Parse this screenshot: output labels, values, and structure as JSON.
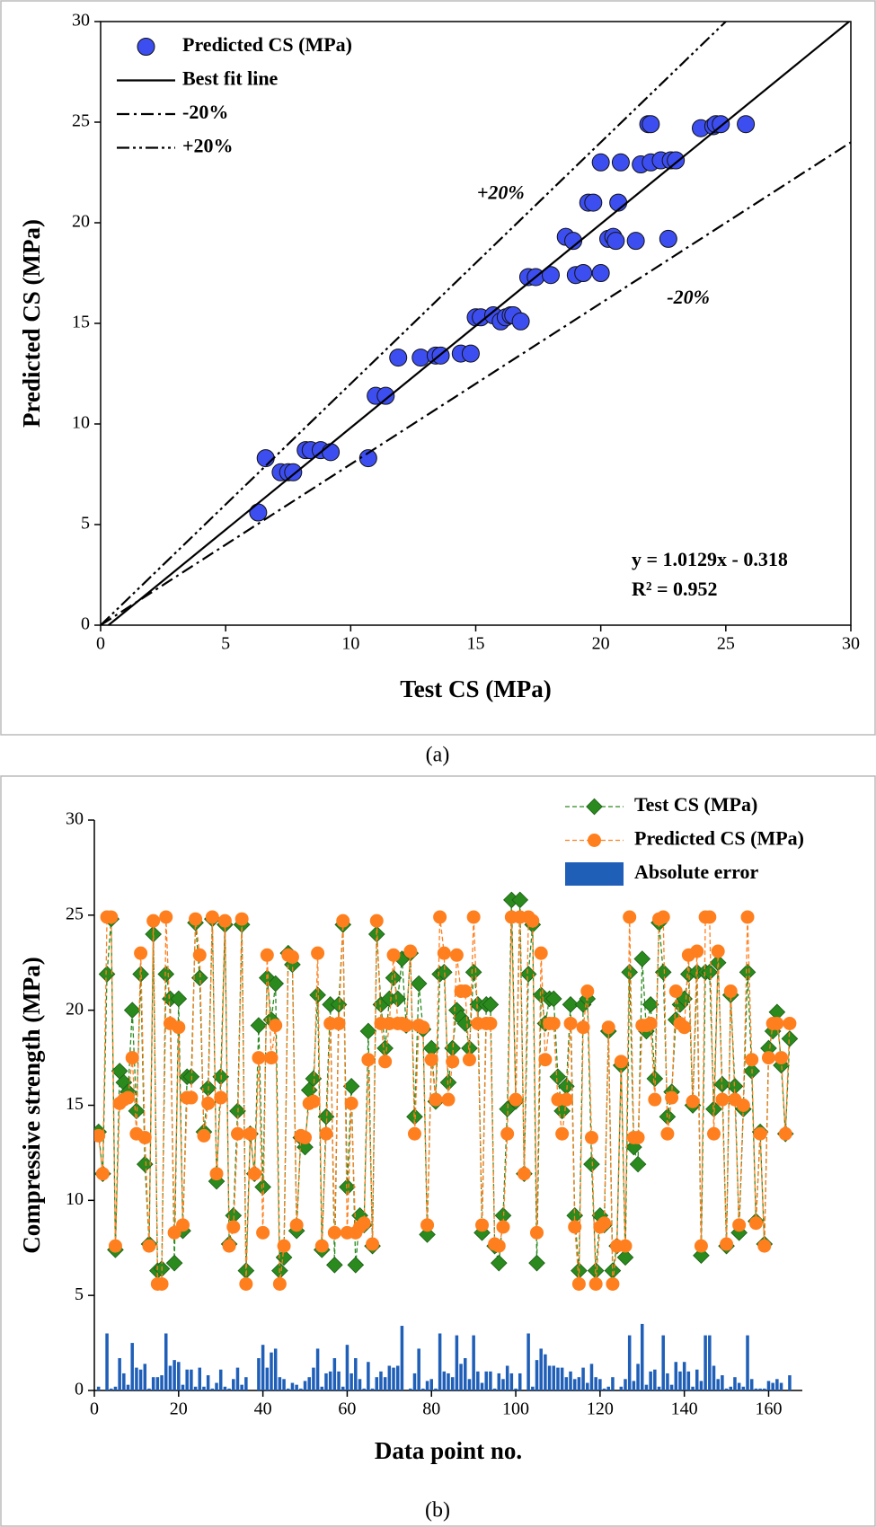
{
  "chart_data": [
    {
      "type": "scatter",
      "caption": "(a)",
      "x_label": "Test CS (MPa)",
      "y_label": "Predicted CS (MPa)",
      "xlim": [
        0,
        30
      ],
      "ylim": [
        0,
        30
      ],
      "xticks": [
        0,
        5,
        10,
        15,
        20,
        25,
        30
      ],
      "yticks": [
        0,
        5,
        10,
        15,
        20,
        25,
        30
      ],
      "equation": "y = 1.0129x - 0.318",
      "r_squared": "R² = 0.952",
      "annotations": [
        {
          "text": "+20%",
          "x": 16,
          "y": 21.4
        },
        {
          "text": "-20%",
          "x": 23.5,
          "y": 16.2
        }
      ],
      "series": [
        {
          "name": "Predicted CS (MPa)",
          "type": "scatter",
          "marker": "circle",
          "color": "#3d4ef0",
          "x": [
            6.3,
            6.6,
            7.2,
            7.5,
            7.7,
            8.2,
            8.4,
            8.8,
            9.2,
            10.7,
            11.0,
            11.4,
            11.9,
            12.8,
            13.4,
            13.6,
            14.4,
            14.8,
            15.0,
            15.2,
            15.7,
            16.0,
            16.2,
            16.4,
            16.5,
            16.8,
            17.1,
            17.4,
            18.0,
            18.6,
            18.9,
            19.0,
            19.3,
            19.5,
            19.7,
            20.0,
            20.0,
            20.3,
            20.5,
            20.6,
            20.7,
            20.8,
            21.4,
            21.6,
            21.9,
            22.0,
            22.0,
            22.4,
            22.7,
            22.8,
            23.0,
            24.0,
            24.5,
            24.6,
            24.8,
            25.8
          ],
          "values": [
            5.6,
            8.3,
            7.6,
            7.6,
            7.6,
            8.7,
            8.7,
            8.7,
            8.6,
            8.3,
            11.4,
            11.4,
            13.3,
            13.3,
            13.4,
            13.4,
            13.5,
            13.5,
            15.3,
            15.3,
            15.4,
            15.1,
            15.3,
            15.4,
            15.4,
            15.1,
            17.3,
            17.3,
            17.4,
            19.3,
            19.1,
            17.4,
            17.5,
            21.0,
            21.0,
            17.5,
            23.0,
            19.2,
            19.3,
            19.1,
            21.0,
            23.0,
            19.1,
            22.9,
            24.9,
            24.9,
            23.0,
            23.1,
            19.2,
            23.1,
            23.1,
            24.7,
            24.8,
            24.9,
            24.9,
            24.9
          ]
        },
        {
          "name": "Best fit line",
          "type": "line",
          "dash": "solid",
          "color": "#000000",
          "x": [
            0,
            30
          ],
          "values": [
            -0.318,
            30.069
          ]
        },
        {
          "name": "-20%",
          "type": "line",
          "dash": "dashdot",
          "color": "#000000",
          "x": [
            0,
            30
          ],
          "values": [
            0,
            24
          ]
        },
        {
          "name": "+20%",
          "type": "line",
          "dash": "dashdotdot",
          "color": "#000000",
          "x": [
            0,
            25
          ],
          "values": [
            0,
            30
          ]
        }
      ]
    },
    {
      "type": "line",
      "caption": "(b)",
      "x_label": "Data point no.",
      "y_label": "Compressive strength (MPa)",
      "xlim": [
        0,
        168
      ],
      "ylim": [
        0,
        30
      ],
      "xticks": [
        0,
        20,
        40,
        60,
        80,
        100,
        120,
        140,
        160
      ],
      "yticks": [
        0,
        5,
        10,
        15,
        20,
        25,
        30
      ],
      "x": [
        1,
        2,
        3,
        4,
        5,
        6,
        7,
        8,
        9,
        10,
        11,
        12,
        13,
        14,
        15,
        16,
        17,
        18,
        19,
        20,
        21,
        22,
        23,
        24,
        25,
        26,
        27,
        28,
        29,
        30,
        31,
        32,
        33,
        34,
        35,
        36,
        37,
        38,
        39,
        40,
        41,
        42,
        43,
        44,
        45,
        46,
        47,
        48,
        49,
        50,
        51,
        52,
        53,
        54,
        55,
        56,
        57,
        58,
        59,
        60,
        61,
        62,
        63,
        64,
        65,
        66,
        67,
        68,
        69,
        70,
        71,
        72,
        73,
        74,
        75,
        76,
        77,
        78,
        79,
        80,
        81,
        82,
        83,
        84,
        85,
        86,
        87,
        88,
        89,
        90,
        91,
        92,
        93,
        94,
        95,
        96,
        97,
        98,
        99,
        100,
        101,
        102,
        103,
        104,
        105,
        106,
        107,
        108,
        109,
        110,
        111,
        112,
        113,
        114,
        115,
        116,
        117,
        118,
        119,
        120,
        121,
        122,
        123,
        124,
        125,
        126,
        127,
        128,
        129,
        130,
        131,
        132,
        133,
        134,
        135,
        136,
        137,
        138,
        139,
        140,
        141,
        142,
        143,
        144,
        145,
        146,
        147,
        148,
        149,
        150,
        151,
        152,
        153,
        154,
        155,
        156,
        157,
        158,
        159,
        160,
        161,
        162,
        163,
        164,
        165
      ],
      "series": [
        {
          "name": "Test CS (MPa)",
          "type": "line",
          "marker": "diamond",
          "dash": "dashed",
          "color": "#2a8a1e",
          "values": [
            13.6,
            11.4,
            21.9,
            24.8,
            7.4,
            16.8,
            16.2,
            15.7,
            20.0,
            14.7,
            21.9,
            11.9,
            7.7,
            24.0,
            6.3,
            6.4,
            21.9,
            20.6,
            6.7,
            20.6,
            8.4,
            16.5,
            16.5,
            24.6,
            21.7,
            13.6,
            15.9,
            24.8,
            11.0,
            16.5,
            24.5,
            7.7,
            9.2,
            14.7,
            24.5,
            6.3,
            13.5,
            11.4,
            19.2,
            10.7,
            21.7,
            19.5,
            21.4,
            6.3,
            7.0,
            23.0,
            22.4,
            8.4,
            13.3,
            12.8,
            15.8,
            16.4,
            20.8,
            7.4,
            14.4,
            20.3,
            6.6,
            20.3,
            24.5,
            10.7,
            16.0,
            6.6,
            9.2,
            8.7,
            18.9,
            7.6,
            24.0,
            20.3,
            18.0,
            20.6,
            21.7,
            20.6,
            22.7,
            19.2,
            23.0,
            14.4,
            21.4,
            19.0,
            8.2,
            18.0,
            15.2,
            21.9,
            22.0,
            16.2,
            18.0,
            20.0,
            19.6,
            19.3,
            18.0,
            22.0,
            20.3,
            8.3,
            20.3,
            20.3,
            7.6,
            6.7,
            9.2,
            14.8,
            25.8,
            15.2,
            25.8,
            11.4,
            21.9,
            24.5,
            6.7,
            20.8,
            19.3,
            20.6,
            20.6,
            16.5,
            14.7,
            16.0,
            20.3,
            9.2,
            6.3,
            20.3,
            20.6,
            11.9,
            6.3,
            9.2,
            8.7,
            18.9,
            6.3,
            7.6,
            17.1,
            7.0,
            22.0,
            12.8,
            11.9,
            22.7,
            18.9,
            20.3,
            16.4,
            24.6,
            22.0,
            14.4,
            15.7,
            19.5,
            20.3,
            20.6,
            21.9,
            15.0,
            22.0,
            7.1,
            22.0,
            22.0,
            14.8,
            22.5,
            16.1,
            7.6,
            20.8,
            16.0,
            8.3,
            14.8,
            22.0,
            16.8,
            8.9,
            13.6,
            7.7,
            18.0,
            18.9,
            19.9,
            17.1,
            13.5,
            18.5
          ]
        },
        {
          "name": "Predicted CS (MPa)",
          "type": "line",
          "marker": "circle",
          "dash": "dashed",
          "color": "#ff7f1e",
          "values": [
            13.4,
            11.4,
            24.9,
            24.9,
            7.6,
            15.1,
            15.3,
            15.4,
            17.5,
            13.5,
            23.0,
            13.3,
            7.6,
            24.7,
            5.6,
            5.6,
            24.9,
            19.3,
            8.3,
            19.1,
            8.7,
            15.4,
            15.4,
            24.8,
            22.9,
            13.4,
            15.1,
            24.9,
            11.4,
            15.4,
            24.7,
            7.6,
            8.6,
            13.5,
            24.8,
            5.6,
            13.5,
            11.4,
            17.5,
            8.3,
            22.9,
            17.5,
            19.2,
            5.6,
            7.6,
            22.9,
            22.8,
            8.7,
            13.4,
            13.3,
            15.1,
            15.2,
            23.0,
            7.6,
            13.5,
            19.3,
            8.3,
            19.3,
            24.7,
            8.3,
            15.1,
            8.3,
            8.6,
            8.8,
            17.4,
            7.7,
            24.7,
            19.3,
            17.3,
            19.3,
            22.9,
            19.3,
            19.3,
            19.2,
            23.1,
            13.5,
            19.2,
            19.1,
            8.7,
            17.4,
            15.3,
            24.9,
            23.0,
            15.3,
            17.3,
            22.9,
            21.0,
            21.0,
            17.4,
            24.9,
            19.3,
            8.7,
            19.3,
            19.3,
            7.7,
            7.6,
            8.6,
            13.5,
            24.9,
            15.3,
            24.9,
            11.4,
            24.9,
            24.7,
            8.3,
            23.0,
            17.4,
            19.3,
            19.3,
            15.3,
            13.5,
            15.3,
            19.3,
            8.6,
            5.6,
            19.1,
            21.0,
            13.3,
            5.6,
            8.6,
            8.8,
            19.1,
            5.6,
            7.6,
            17.3,
            7.6,
            24.9,
            13.3,
            13.3,
            19.2,
            19.2,
            19.3,
            15.3,
            24.8,
            24.9,
            13.5,
            15.4,
            21.0,
            19.3,
            19.1,
            22.9,
            15.2,
            23.1,
            7.6,
            24.9,
            24.9,
            13.5,
            23.1,
            15.3,
            7.7,
            21.0,
            15.3,
            8.7,
            15.0,
            24.9,
            17.4,
            8.8,
            13.5,
            7.6,
            17.5,
            19.3,
            19.3,
            17.5,
            13.5,
            19.3
          ]
        },
        {
          "name": "Absolute error",
          "type": "bar",
          "color": "#1f5fb8",
          "values": [
            0.2,
            0.0,
            3.0,
            0.1,
            0.2,
            1.7,
            0.9,
            0.3,
            2.5,
            1.2,
            1.1,
            1.4,
            0.1,
            0.7,
            0.7,
            0.8,
            3.0,
            1.3,
            1.6,
            1.5,
            0.3,
            1.1,
            1.1,
            0.2,
            1.2,
            0.2,
            0.8,
            0.1,
            0.4,
            1.1,
            0.2,
            0.1,
            0.6,
            1.2,
            0.3,
            0.7,
            0.0,
            0.0,
            1.7,
            2.4,
            1.2,
            2.0,
            2.2,
            0.7,
            0.6,
            0.1,
            0.4,
            0.3,
            0.1,
            0.5,
            0.7,
            1.2,
            2.2,
            0.2,
            0.9,
            1.0,
            1.7,
            1.0,
            0.2,
            2.4,
            0.9,
            1.7,
            0.6,
            0.1,
            1.5,
            0.1,
            0.7,
            1.0,
            0.7,
            1.3,
            1.2,
            1.3,
            3.4,
            0.0,
            0.1,
            0.9,
            2.2,
            0.1,
            0.5,
            0.6,
            0.1,
            3.0,
            1.0,
            0.9,
            0.7,
            2.9,
            1.4,
            1.7,
            0.6,
            2.9,
            1.0,
            0.4,
            1.0,
            1.0,
            0.1,
            0.9,
            0.6,
            1.3,
            0.9,
            0.1,
            0.9,
            0.0,
            3.0,
            0.2,
            1.6,
            2.2,
            1.9,
            1.3,
            1.3,
            1.2,
            1.2,
            0.7,
            1.0,
            0.6,
            0.7,
            1.2,
            0.4,
            1.4,
            0.7,
            0.6,
            0.1,
            0.2,
            0.7,
            0.0,
            0.2,
            0.6,
            2.9,
            0.5,
            1.4,
            3.5,
            0.3,
            1.0,
            1.1,
            0.2,
            2.9,
            0.9,
            0.3,
            1.5,
            1.0,
            1.5,
            1.0,
            0.2,
            1.1,
            0.5,
            2.9,
            2.9,
            1.3,
            0.6,
            0.8,
            0.1,
            0.2,
            0.7,
            0.4,
            0.2,
            2.9,
            0.6,
            0.1,
            0.1,
            0.1,
            0.5,
            0.4,
            0.6,
            0.4,
            0.0,
            0.8
          ]
        }
      ]
    }
  ]
}
